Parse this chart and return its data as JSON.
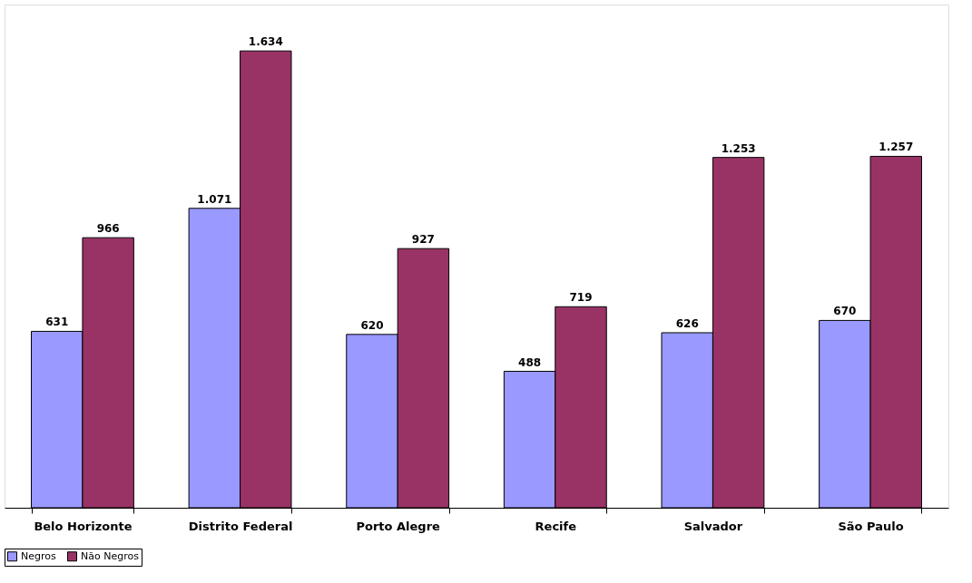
{
  "chart_data": {
    "type": "bar",
    "categories": [
      "Belo Horizonte",
      "Distrito Federal",
      "Porto Alegre",
      "Recife",
      "Salvador",
      "São Paulo"
    ],
    "series": [
      {
        "name": "Negros",
        "color": "#9999ff",
        "values": [
          631,
          1071,
          620,
          488,
          626,
          670
        ],
        "value_labels": [
          "631",
          "1.071",
          "620",
          "488",
          "626",
          "670"
        ]
      },
      {
        "name": "Não Negros",
        "color": "#993366",
        "values": [
          966,
          1634,
          927,
          719,
          1253,
          1257
        ],
        "value_labels": [
          "966",
          "1.634",
          "927",
          "719",
          "1.253",
          "1.257"
        ]
      }
    ],
    "legend": "bottom",
    "grid": false,
    "tick_labels": "x"
  }
}
